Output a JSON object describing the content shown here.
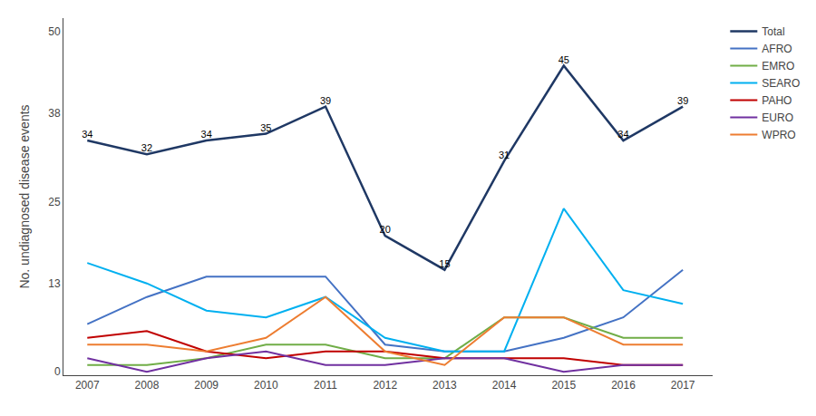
{
  "chart_data": {
    "type": "line",
    "x": [
      2007,
      2008,
      2009,
      2010,
      2011,
      2012,
      2013,
      2014,
      2015,
      2016,
      2017
    ],
    "series": [
      {
        "name": "Total",
        "color": "#1f3864",
        "values": [
          34,
          32,
          34,
          35,
          39,
          20,
          15,
          31,
          45,
          34,
          39
        ],
        "data_labels": true
      },
      {
        "name": "AFRO",
        "color": "#4472c4",
        "values": [
          7,
          11,
          14,
          14,
          14,
          4,
          3,
          3,
          5,
          8,
          15
        ]
      },
      {
        "name": "EMRO",
        "color": "#70ad47",
        "values": [
          1,
          1,
          2,
          4,
          4,
          2,
          2,
          8,
          8,
          5,
          5
        ]
      },
      {
        "name": "SEARO",
        "color": "#00b0f0",
        "values": [
          16,
          13,
          9,
          8,
          11,
          5,
          3,
          3,
          24,
          12,
          10
        ]
      },
      {
        "name": "PAHO",
        "color": "#c00000",
        "values": [
          5,
          6,
          3,
          2,
          3,
          3,
          2,
          2,
          2,
          1,
          1
        ]
      },
      {
        "name": "EURO",
        "color": "#7030a0",
        "values": [
          2,
          0,
          2,
          3,
          1,
          1,
          2,
          2,
          0,
          1,
          1
        ]
      },
      {
        "name": "WPRO",
        "color": "#ed7d31",
        "values": [
          4,
          4,
          3,
          5,
          11,
          3,
          1,
          8,
          8,
          4,
          4
        ]
      }
    ],
    "ylabel": "No. undiagnosed disease events",
    "xlim": [
      2006.6,
      2017.5
    ],
    "xticks": [
      2007,
      2008,
      2009,
      2010,
      2011,
      2012,
      2013,
      2014,
      2015,
      2016,
      2017
    ],
    "ylim": [
      -0.5,
      52
    ],
    "yticks": [
      0,
      13,
      25,
      38,
      50
    ],
    "grid": false
  }
}
